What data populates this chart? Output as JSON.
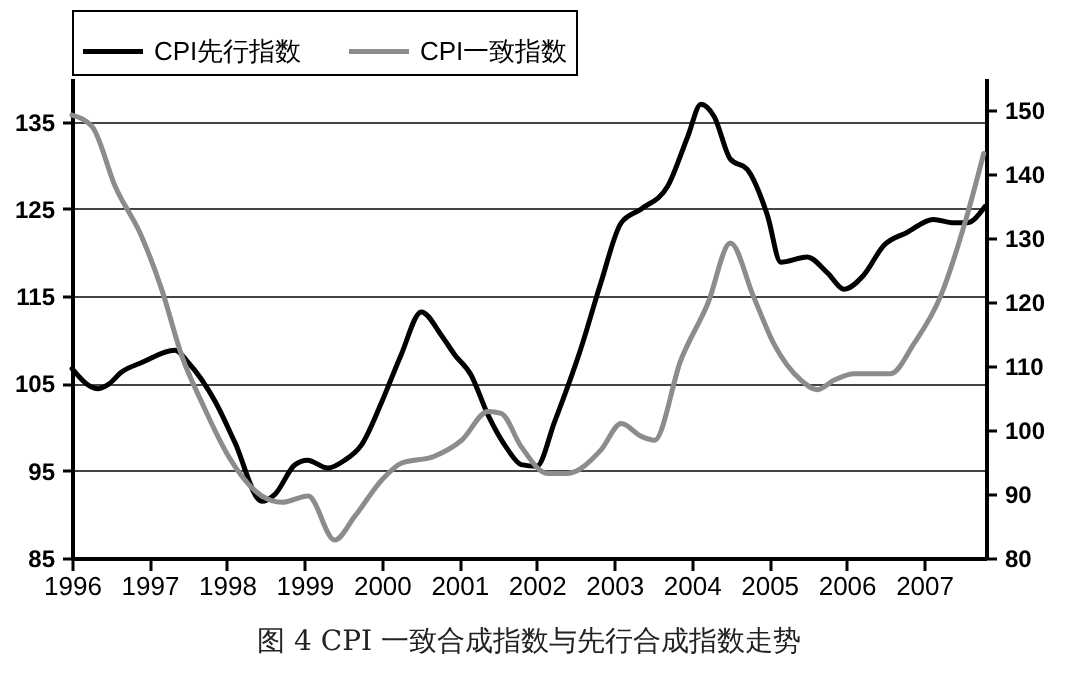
{
  "chart_data": {
    "type": "line",
    "title": "图 4  CPI 一致合成指数与先行合成指数走势",
    "xlim": [
      1996,
      2007.8
    ],
    "xticks": [
      1996,
      1997,
      1998,
      1999,
      2000,
      2001,
      2002,
      2003,
      2004,
      2005,
      2006,
      2007
    ],
    "ylim": [
      85,
      140
    ],
    "yticks": [
      85,
      95,
      105,
      115,
      125,
      135
    ],
    "y2lim": [
      80,
      155
    ],
    "y2ticks": [
      80,
      90,
      100,
      110,
      120,
      130,
      140,
      150
    ],
    "grid": "y",
    "legend": "top",
    "series": [
      {
        "name": "CPI先行指数",
        "color": "#000000",
        "x": [
          1996.0,
          1996.33,
          1996.47,
          1996.64,
          1996.9,
          1997.33,
          1997.5,
          1997.85,
          1998.1,
          1998.45,
          1998.62,
          1998.88,
          1999.04,
          1999.3,
          1999.52,
          1999.74,
          2000.0,
          2000.25,
          2000.51,
          2000.77,
          2000.94,
          2001.15,
          2001.37,
          2001.62,
          2001.8,
          2002.0,
          2002.23,
          2002.57,
          2002.83,
          2003.09,
          2003.35,
          2003.69,
          2003.95,
          2004.12,
          2004.29,
          2004.5,
          2004.72,
          2004.98,
          2005.15,
          2005.49,
          2005.75,
          2005.97,
          2006.22,
          2006.48,
          2006.78,
          2007.12,
          2007.38,
          2007.55,
          2007.79
        ],
        "values": [
          106.7,
          104.4,
          104.9,
          106.3,
          107.4,
          108.8,
          107.4,
          102.9,
          98.3,
          91.5,
          92.3,
          95.7,
          96.2,
          95.3,
          96.2,
          98.0,
          102.9,
          108.3,
          113.2,
          110.5,
          108.3,
          106.0,
          101.4,
          97.5,
          95.7,
          95.5,
          100.6,
          109.0,
          116.6,
          123.4,
          125.0,
          127.6,
          133.3,
          137.0,
          135.6,
          130.7,
          129.5,
          124.2,
          118.9,
          119.5,
          117.7,
          115.8,
          117.4,
          120.8,
          122.3,
          123.8,
          123.4,
          123.4,
          125.3
        ]
      },
      {
        "name": "CPI一致指数",
        "color": "#8c8c8c",
        "axis": "y2",
        "x": [
          1996.0,
          1996.26,
          1996.56,
          1996.9,
          1997.16,
          1997.42,
          1997.68,
          1998.02,
          1998.45,
          1998.71,
          1999.05,
          1999.39,
          1999.65,
          2000.0,
          2000.25,
          2000.68,
          2001.03,
          2001.37,
          2001.54,
          2001.8,
          2002.14,
          2002.39,
          2002.83,
          2003.09,
          2003.35,
          2003.52,
          2003.86,
          2004.21,
          2004.5,
          2004.8,
          2005.06,
          2005.41,
          2005.62,
          2005.84,
          2006.1,
          2006.57,
          2006.87,
          2007.21,
          2007.55,
          2007.77
        ],
        "values": [
          149.2,
          147.4,
          138.0,
          130.2,
          121.9,
          111.5,
          104.2,
          95.9,
          89.7,
          88.7,
          89.7,
          82.8,
          86.5,
          92.2,
          94.8,
          95.9,
          98.4,
          102.9,
          102.6,
          97.4,
          93.2,
          93.2,
          96.9,
          101.0,
          99.0,
          98.4,
          110.9,
          119.8,
          129.2,
          120.8,
          113.5,
          107.8,
          106.3,
          107.8,
          108.8,
          108.8,
          113.5,
          120.8,
          133.3,
          143.2
        ]
      }
    ]
  }
}
